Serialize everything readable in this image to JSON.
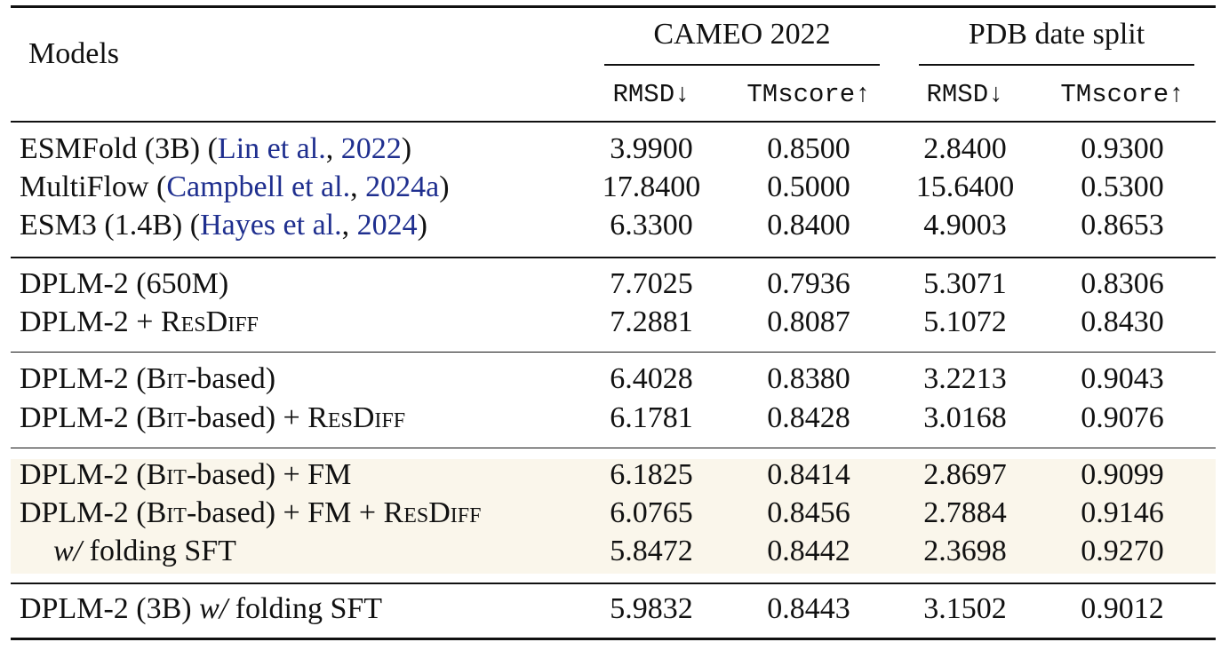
{
  "header": {
    "models": "Models",
    "group1": "CAMEO 2022",
    "group2": "PDB date split",
    "rmsd": "RMSD↓",
    "tmscore": "TMscore↑"
  },
  "rows": [
    {
      "label": {
        "pre": "ESMFold (3B) (",
        "cite_name": "Lin et al.",
        "sep": ", ",
        "cite_year": "2022",
        "post": ")"
      },
      "cells": [
        "3.9900",
        "0.8500",
        "2.8400",
        "0.9300"
      ]
    },
    {
      "label": {
        "pre": "MultiFlow (",
        "cite_name": "Campbell et al.",
        "sep": ", ",
        "cite_year": "2024a",
        "post": ")"
      },
      "cells": [
        "17.8400",
        "0.5000",
        "15.6400",
        "0.5300"
      ]
    },
    {
      "label": {
        "pre": "ESM3 (1.4B) (",
        "cite_name": "Hayes et al.",
        "sep": ", ",
        "cite_year": "2024",
        "post": ")"
      },
      "cells": [
        "6.3300",
        "0.8400",
        "4.9003",
        "0.8653"
      ]
    },
    {
      "label": {
        "a": "DPLM-2 (650M)"
      },
      "cells": [
        "7.7025",
        "0.7936",
        "5.3071",
        "0.8306"
      ]
    },
    {
      "label": {
        "a": "DPLM-2 + ",
        "sc1": "ResDiff"
      },
      "cells": [
        "7.2881",
        "0.8087",
        "5.1072",
        "0.8430"
      ]
    },
    {
      "label": {
        "a": "DPLM-2 (",
        "sc1": "Bit",
        "b": "-based)"
      },
      "cells": [
        "6.4028",
        "0.8380",
        "3.2213",
        "0.9043"
      ]
    },
    {
      "label": {
        "a": "DPLM-2 (",
        "sc1": "Bit",
        "b": "-based) + ",
        "sc2": "ResDiff"
      },
      "cells": [
        "6.1781",
        "0.8428",
        "3.0168",
        "0.9076"
      ]
    },
    {
      "label": {
        "a": "DPLM-2 (",
        "sc1": "Bit",
        "b": "-based) + FM"
      },
      "cells": [
        "6.1825",
        "0.8414",
        "2.8697",
        "0.9099"
      ]
    },
    {
      "label": {
        "a": "DPLM-2 (",
        "sc1": "Bit",
        "b": "-based) + FM + ",
        "sc2": "ResDiff"
      },
      "cells": [
        "6.0765",
        "0.8456",
        "2.7884",
        "0.9146"
      ]
    },
    {
      "label": {
        "it": "w/",
        "b": " folding SFT"
      },
      "cells": [
        "5.8472",
        "0.8442",
        "2.3698",
        "0.9270"
      ]
    },
    {
      "label": {
        "a": "DPLM-2 (3B) ",
        "it": "w/",
        "b": " folding SFT"
      },
      "cells": [
        "5.9832",
        "0.8443",
        "3.1502",
        "0.9012"
      ]
    }
  ],
  "colors": {
    "citation": "#1f2f8f",
    "highlight": "#faf6eb"
  }
}
